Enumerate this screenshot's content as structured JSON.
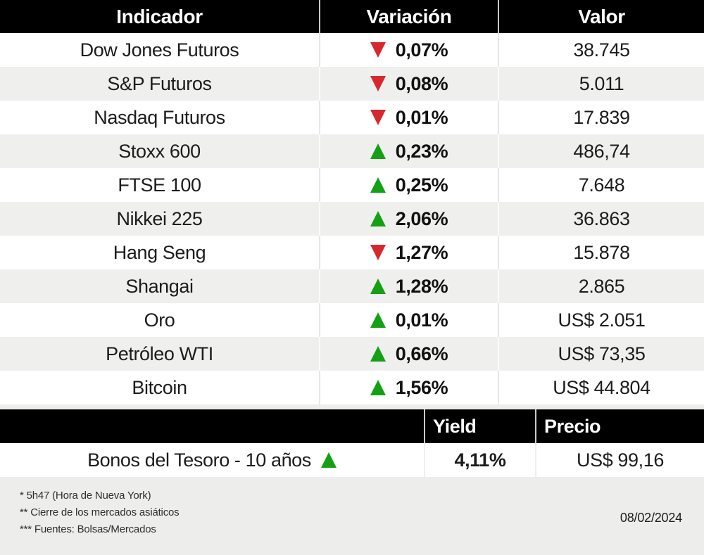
{
  "main_table": {
    "columns": [
      "Indicador",
      "Variación",
      "Valor"
    ],
    "rows": [
      {
        "indicator": "Dow Jones Futuros",
        "direction": "down",
        "variation": "0,07%",
        "value": "38.745"
      },
      {
        "indicator": "S&P Futuros",
        "direction": "down",
        "variation": "0,08%",
        "value": "5.011"
      },
      {
        "indicator": "Nasdaq Futuros",
        "direction": "down",
        "variation": "0,01%",
        "value": "17.839"
      },
      {
        "indicator": "Stoxx 600",
        "direction": "up",
        "variation": "0,23%",
        "value": "486,74"
      },
      {
        "indicator": "FTSE 100",
        "direction": "up",
        "variation": "0,25%",
        "value": "7.648"
      },
      {
        "indicator": "Nikkei 225",
        "direction": "up",
        "variation": "2,06%",
        "value": "36.863"
      },
      {
        "indicator": "Hang Seng",
        "direction": "down",
        "variation": "1,27%",
        "value": "15.878"
      },
      {
        "indicator": "Shangai",
        "direction": "up",
        "variation": "1,28%",
        "value": "2.865"
      },
      {
        "indicator": "Oro",
        "direction": "up",
        "variation": "0,01%",
        "value": "US$ 2.051"
      },
      {
        "indicator": "Petróleo WTI",
        "direction": "up",
        "variation": "0,66%",
        "value": "US$ 73,35"
      },
      {
        "indicator": "Bitcoin",
        "direction": "up",
        "variation": "1,56%",
        "value": "US$ 44.804"
      }
    ]
  },
  "bond_table": {
    "yield_header": "Yield",
    "price_header": "Precio",
    "row": {
      "name": "Bonos del Tesoro - 10 años",
      "direction": "up",
      "yield": "4,11%",
      "price": "US$ 99,16"
    }
  },
  "footer": {
    "notes": [
      "* 5h47 (Hora de Nueva York)",
      "** Cierre de los mercados asiáticos",
      "*** Fuentes: Bolsas/Mercados"
    ],
    "date": "08/02/2024"
  },
  "colors": {
    "up_green": "#14a014",
    "down_red": "#d7282f",
    "header_bg": "#000000",
    "row_alt_bg": "#efefee",
    "footer_bg": "#ededec"
  },
  "chart_data": [
    {
      "type": "table",
      "title": "Indicadores de mercado",
      "columns": [
        "Indicador",
        "Variación",
        "Valor"
      ],
      "rows": [
        [
          "Dow Jones Futuros",
          "▼ 0,07%",
          "38.745"
        ],
        [
          "S&P Futuros",
          "▼ 0,08%",
          "5.011"
        ],
        [
          "Nasdaq Futuros",
          "▼ 0,01%",
          "17.839"
        ],
        [
          "Stoxx 600",
          "▲ 0,23%",
          "486,74"
        ],
        [
          "FTSE 100",
          "▲ 0,25%",
          "7.648"
        ],
        [
          "Nikkei 225",
          "▲ 2,06%",
          "36.863"
        ],
        [
          "Hang Seng",
          "▼ 1,27%",
          "15.878"
        ],
        [
          "Shangai",
          "▲ 1,28%",
          "2.865"
        ],
        [
          "Oro",
          "▲ 0,01%",
          "US$ 2.051"
        ],
        [
          "Petróleo WTI",
          "▲ 0,66%",
          "US$ 73,35"
        ],
        [
          "Bitcoin",
          "▲ 1,56%",
          "US$ 44.804"
        ]
      ]
    },
    {
      "type": "table",
      "title": "Bonos",
      "columns": [
        "",
        "Yield",
        "Precio"
      ],
      "rows": [
        [
          "Bonos del Tesoro - 10 años ▲",
          "4,11%",
          "US$ 99,16"
        ]
      ]
    }
  ]
}
